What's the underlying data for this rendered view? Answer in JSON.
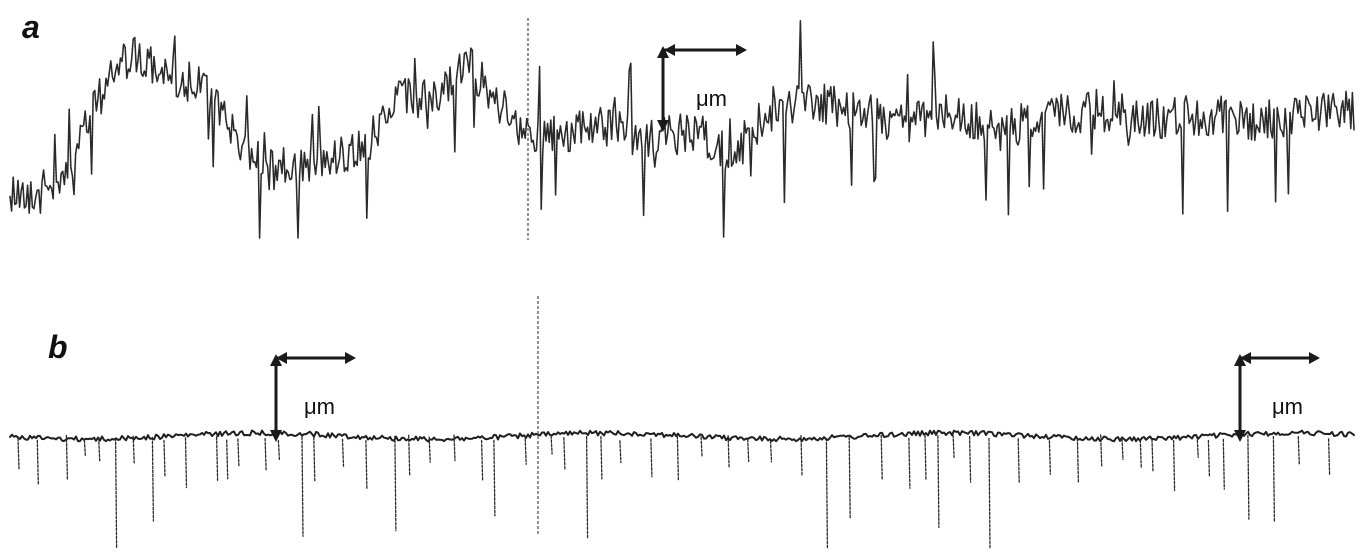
{
  "panels": [
    {
      "id": "a",
      "letter": "a"
    },
    {
      "id": "b",
      "letter": "b"
    }
  ],
  "scale_bars": [
    {
      "panel": "a",
      "unit": "μm"
    },
    {
      "panel": "b",
      "unit": "μm"
    },
    {
      "panel": "b",
      "unit": "μm"
    }
  ]
}
